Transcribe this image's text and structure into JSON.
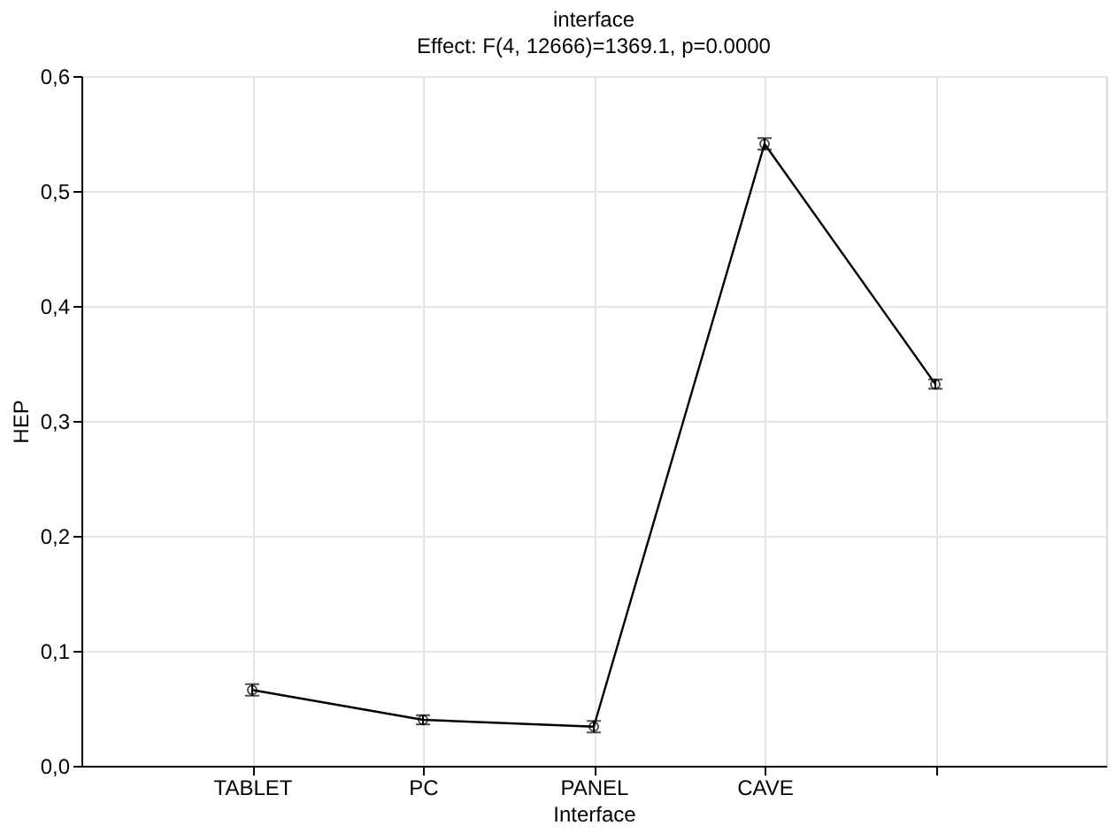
{
  "chart_data": {
    "type": "line",
    "title": "interface",
    "subtitle": "Effect: F(4, 12666)=1369.1, p=0.0000",
    "xlabel": "Interface",
    "ylabel": "HEP",
    "categories": [
      "TABLET",
      "PC",
      "PANEL",
      "CAVE",
      null
    ],
    "series": [
      {
        "color": "#000000",
        "values": [
          0.066,
          0.04,
          0.034,
          0.541,
          0.332
        ],
        "errors": [
          0.005,
          0.004,
          0.005,
          0.005,
          0.004
        ]
      }
    ],
    "ylim": [
      0,
      0.6
    ],
    "yticks": [
      {
        "value": 0,
        "label": "0,0"
      },
      {
        "value": 0.1,
        "label": "0,1"
      },
      {
        "value": 0.2,
        "label": "0,2"
      },
      {
        "value": 0.3,
        "label": "0,3"
      },
      {
        "value": 0.4,
        "label": "0,4"
      },
      {
        "value": 0.5,
        "label": "0,5"
      },
      {
        "value": 0.6,
        "label": "0,6"
      }
    ],
    "grid": true,
    "marker": "circle",
    "line_style": "solid"
  }
}
